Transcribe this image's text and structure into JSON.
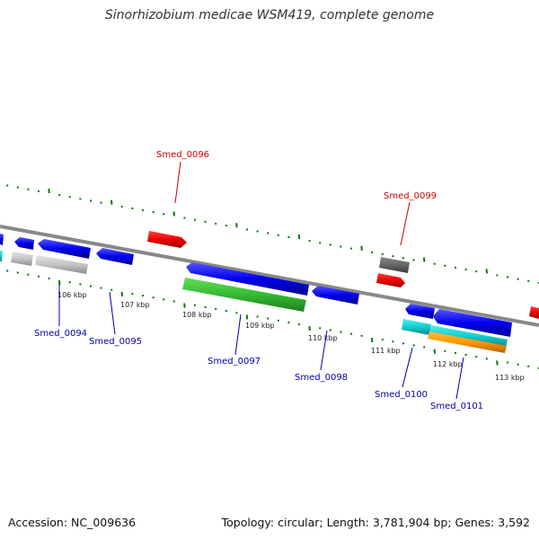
{
  "title": "Sinorhizobium medicae WSM419, complete genome",
  "footer": {
    "accession": "Accession: NC_009636",
    "summary": "Topology: circular; Length: 3,781,904 bp; Genes: 3,592"
  },
  "colors": {
    "forward_label": "#cc0000",
    "reverse_label": "#0000aa",
    "backbone": "#888888",
    "tick": "#0a7a0a"
  },
  "kbp_labels": [
    "106 kbp",
    "107 kbp",
    "108 kbp",
    "109 kbp",
    "110 kbp",
    "111 kbp",
    "112 kbp",
    "113 kbp"
  ],
  "gene_labels": [
    {
      "name": "Smed_0096",
      "strand": "forward"
    },
    {
      "name": "Smed_0099",
      "strand": "forward"
    },
    {
      "name": "Smed_0094",
      "strand": "reverse"
    },
    {
      "name": "Smed_0095",
      "strand": "reverse"
    },
    {
      "name": "Smed_0097",
      "strand": "reverse"
    },
    {
      "name": "Smed_0098",
      "strand": "reverse"
    },
    {
      "name": "Smed_0100",
      "strand": "reverse"
    },
    {
      "name": "Smed_0101",
      "strand": "reverse"
    }
  ]
}
